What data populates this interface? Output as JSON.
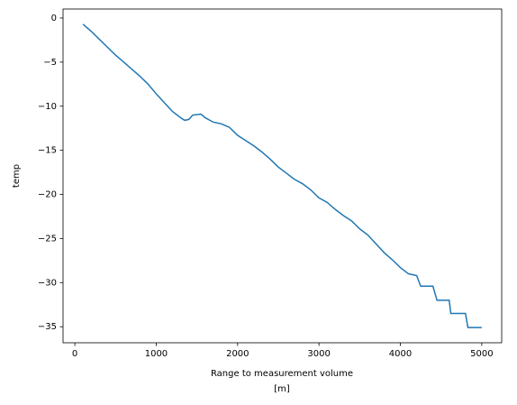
{
  "chart_data": {
    "type": "line",
    "ylabel": "temp",
    "xlabel": [
      "Range to measurement volume",
      "[m]"
    ],
    "x": [
      100,
      200,
      300,
      400,
      500,
      600,
      700,
      800,
      900,
      1000,
      1100,
      1200,
      1300,
      1350,
      1400,
      1450,
      1550,
      1600,
      1700,
      1800,
      1900,
      2000,
      2100,
      2200,
      2300,
      2400,
      2500,
      2600,
      2700,
      2800,
      2900,
      3000,
      3100,
      3200,
      3300,
      3400,
      3500,
      3600,
      3700,
      3800,
      3900,
      4000,
      4100,
      4200,
      4250,
      4400,
      4450,
      4600,
      4620,
      4800,
      4830,
      5000
    ],
    "series": [
      {
        "name": "temp",
        "color": "#1f77b4",
        "values": [
          -0.7,
          -1.5,
          -2.4,
          -3.3,
          -4.2,
          -5.0,
          -5.8,
          -6.6,
          -7.5,
          -8.6,
          -9.6,
          -10.6,
          -11.3,
          -11.6,
          -11.5,
          -11.0,
          -10.9,
          -11.3,
          -11.8,
          -12.0,
          -12.4,
          -13.3,
          -13.9,
          -14.5,
          -15.2,
          -16.0,
          -16.9,
          -17.6,
          -18.3,
          -18.8,
          -19.5,
          -20.4,
          -20.9,
          -21.7,
          -22.4,
          -23.0,
          -23.9,
          -24.6,
          -25.6,
          -26.6,
          -27.4,
          -28.3,
          -29.0,
          -29.2,
          -30.4,
          -30.4,
          -32.0,
          -32.0,
          -33.5,
          -33.5,
          -35.1,
          -35.1
        ]
      }
    ],
    "xlim": [
      -145,
      5245
    ],
    "ylim": [
      -36.82,
      1.02
    ],
    "xticks": [
      0,
      1000,
      2000,
      3000,
      4000,
      5000
    ],
    "yticks": [
      0,
      {
        "value": -5,
        "label": "−5"
      },
      {
        "value": -10,
        "label": "−10"
      },
      {
        "value": -15,
        "label": "−15"
      },
      {
        "value": -20,
        "label": "−20"
      },
      {
        "value": -25,
        "label": "−25"
      },
      {
        "value": -30,
        "label": "−30"
      },
      {
        "value": -35,
        "label": "−35"
      }
    ],
    "grid": false
  }
}
